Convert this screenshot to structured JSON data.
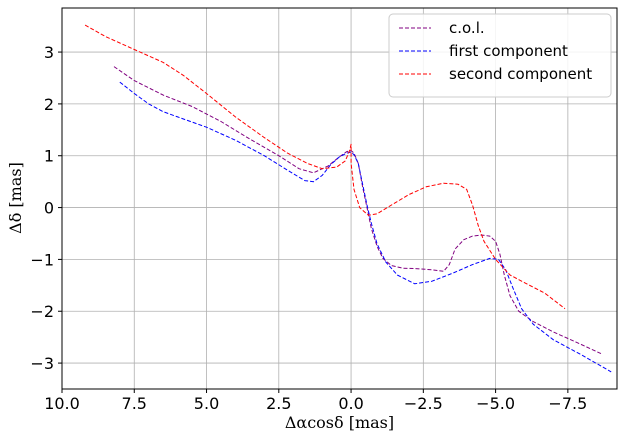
{
  "chart_data": {
    "type": "line",
    "title": "",
    "xlabel": "Δαcosδ [mas]",
    "ylabel": "Δδ [mas]",
    "xlim": [
      10.0,
      -9.2
    ],
    "ylim": [
      -3.5,
      3.85
    ],
    "x_inverted": true,
    "xticks": [
      10.0,
      7.5,
      5.0,
      2.5,
      0.0,
      -2.5,
      -5.0,
      -7.5
    ],
    "xtick_labels": [
      "10.0",
      "7.5",
      "5.0",
      "2.5",
      "0.0",
      "−2.5",
      "−5.0",
      "−7.5"
    ],
    "yticks": [
      3,
      2,
      1,
      0,
      -1,
      -2,
      -3
    ],
    "ytick_labels": [
      "3",
      "2",
      "1",
      "0",
      "−1",
      "−2",
      "−3"
    ],
    "grid": true,
    "legend_position": "top-right",
    "line_style": "dashed",
    "series": [
      {
        "name": "c.o.l.",
        "color": "#800080",
        "points": [
          [
            8.2,
            2.72
          ],
          [
            7.5,
            2.45
          ],
          [
            6.5,
            2.17
          ],
          [
            5.5,
            1.95
          ],
          [
            4.5,
            1.66
          ],
          [
            3.5,
            1.32
          ],
          [
            2.5,
            1.0
          ],
          [
            1.8,
            0.75
          ],
          [
            1.3,
            0.67
          ],
          [
            0.8,
            0.8
          ],
          [
            0.4,
            0.98
          ],
          [
            0.15,
            1.08
          ],
          [
            0.0,
            1.1
          ],
          [
            -0.1,
            1.05
          ],
          [
            -0.25,
            0.85
          ],
          [
            -0.4,
            0.4
          ],
          [
            -0.55,
            0.0
          ],
          [
            -0.7,
            -0.4
          ],
          [
            -0.9,
            -0.75
          ],
          [
            -1.1,
            -0.98
          ],
          [
            -1.4,
            -1.12
          ],
          [
            -1.8,
            -1.17
          ],
          [
            -2.3,
            -1.18
          ],
          [
            -2.8,
            -1.2
          ],
          [
            -3.2,
            -1.23
          ],
          [
            -3.4,
            -1.1
          ],
          [
            -3.6,
            -0.8
          ],
          [
            -3.9,
            -0.62
          ],
          [
            -4.2,
            -0.55
          ],
          [
            -4.5,
            -0.53
          ],
          [
            -4.8,
            -0.55
          ],
          [
            -5.0,
            -0.65
          ],
          [
            -5.15,
            -0.9
          ],
          [
            -5.3,
            -1.3
          ],
          [
            -5.5,
            -1.7
          ],
          [
            -5.8,
            -2.0
          ],
          [
            -6.3,
            -2.2
          ],
          [
            -7.0,
            -2.4
          ],
          [
            -7.8,
            -2.6
          ],
          [
            -8.7,
            -2.83
          ]
        ]
      },
      {
        "name": "first component",
        "color": "#0000ff",
        "points": [
          [
            8.0,
            2.42
          ],
          [
            7.5,
            2.2
          ],
          [
            7.0,
            2.0
          ],
          [
            6.5,
            1.85
          ],
          [
            6.0,
            1.75
          ],
          [
            5.0,
            1.55
          ],
          [
            4.0,
            1.3
          ],
          [
            3.0,
            1.0
          ],
          [
            2.2,
            0.72
          ],
          [
            1.6,
            0.52
          ],
          [
            1.3,
            0.5
          ],
          [
            1.0,
            0.62
          ],
          [
            0.7,
            0.83
          ],
          [
            0.4,
            0.98
          ],
          [
            0.15,
            1.05
          ],
          [
            0.0,
            1.07
          ],
          [
            -0.1,
            1.02
          ],
          [
            -0.25,
            0.85
          ],
          [
            -0.4,
            0.45
          ],
          [
            -0.55,
            0.05
          ],
          [
            -0.7,
            -0.3
          ],
          [
            -0.9,
            -0.7
          ],
          [
            -1.2,
            -1.05
          ],
          [
            -1.6,
            -1.3
          ],
          [
            -2.2,
            -1.47
          ],
          [
            -2.8,
            -1.42
          ],
          [
            -3.5,
            -1.27
          ],
          [
            -4.2,
            -1.1
          ],
          [
            -4.8,
            -0.98
          ],
          [
            -5.1,
            -1.0
          ],
          [
            -5.35,
            -1.2
          ],
          [
            -5.6,
            -1.55
          ],
          [
            -5.9,
            -1.95
          ],
          [
            -6.3,
            -2.25
          ],
          [
            -7.0,
            -2.55
          ],
          [
            -8.0,
            -2.85
          ],
          [
            -9.0,
            -3.17
          ]
        ]
      },
      {
        "name": "second component",
        "color": "#ff0000",
        "points": [
          [
            9.2,
            3.52
          ],
          [
            8.5,
            3.3
          ],
          [
            7.5,
            3.05
          ],
          [
            6.5,
            2.8
          ],
          [
            5.8,
            2.55
          ],
          [
            5.0,
            2.2
          ],
          [
            4.0,
            1.75
          ],
          [
            3.0,
            1.35
          ],
          [
            2.2,
            1.05
          ],
          [
            1.5,
            0.85
          ],
          [
            1.0,
            0.75
          ],
          [
            0.5,
            0.78
          ],
          [
            0.2,
            0.9
          ],
          [
            0.05,
            1.1
          ],
          [
            0.0,
            1.22
          ],
          [
            0.0,
            0.85
          ],
          [
            -0.1,
            0.35
          ],
          [
            -0.3,
            0.0
          ],
          [
            -0.6,
            -0.15
          ],
          [
            -0.9,
            -0.12
          ],
          [
            -1.4,
            0.05
          ],
          [
            -2.0,
            0.25
          ],
          [
            -2.6,
            0.4
          ],
          [
            -3.2,
            0.47
          ],
          [
            -3.7,
            0.45
          ],
          [
            -4.0,
            0.35
          ],
          [
            -4.2,
            0.05
          ],
          [
            -4.4,
            -0.35
          ],
          [
            -4.6,
            -0.65
          ],
          [
            -5.0,
            -1.0
          ],
          [
            -5.5,
            -1.3
          ],
          [
            -6.0,
            -1.45
          ],
          [
            -6.7,
            -1.65
          ],
          [
            -7.4,
            -1.95
          ]
        ]
      }
    ]
  }
}
